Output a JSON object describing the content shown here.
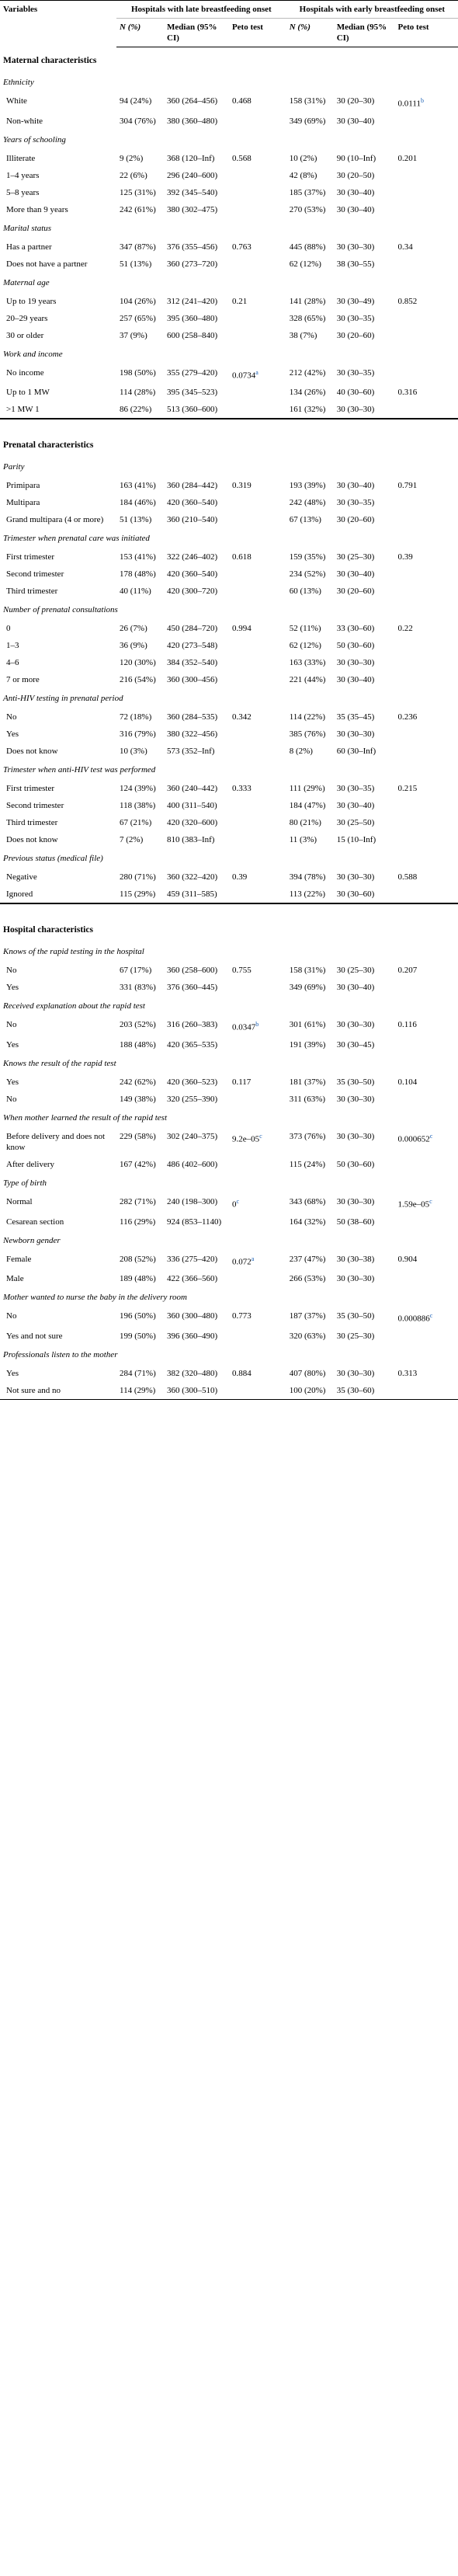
{
  "header": {
    "variables": "Variables",
    "group_late": "Hospitals with late breastfeeding onset",
    "group_early": "Hospitals with early breastfeeding onset",
    "col_n": "N (%)",
    "col_median": "Median (95% CI)",
    "col_peto": "Peto test"
  },
  "sections": [
    {
      "title": "Maternal characteristics",
      "groups": [
        {
          "title": "Ethnicity",
          "rows": [
            {
              "label": "White",
              "late_n": "94 (24%)",
              "late_median": "360 (264–456)",
              "late_peto": "0.468",
              "early_n": "158 (31%)",
              "early_median": "30 (20–30)",
              "early_peto": "0.0111",
              "early_note": "b"
            },
            {
              "label": "Non-white",
              "late_n": "304 (76%)",
              "late_median": "380 (360–480)",
              "late_peto": "",
              "early_n": "349 (69%)",
              "early_median": "30 (30–40)",
              "early_peto": ""
            }
          ]
        },
        {
          "title": "Years of schooling",
          "rows": [
            {
              "label": "Illiterate",
              "late_n": "9 (2%)",
              "late_median": "368 (120–Inf)",
              "late_peto": "0.568",
              "early_n": "10 (2%)",
              "early_median": "90 (10–Inf)",
              "early_peto": "0.201"
            },
            {
              "label": "1–4 years",
              "late_n": "22 (6%)",
              "late_median": "296 (240–600)",
              "late_peto": "",
              "early_n": "42 (8%)",
              "early_median": "30 (20–50)",
              "early_peto": ""
            },
            {
              "label": "5–8 years",
              "late_n": "125 (31%)",
              "late_median": "392 (345–540)",
              "late_peto": "",
              "early_n": "185 (37%)",
              "early_median": "30 (30–40)",
              "early_peto": ""
            },
            {
              "label": "More than 9 years",
              "late_n": "242 (61%)",
              "late_median": "380 (302–475)",
              "late_peto": "",
              "early_n": "270 (53%)",
              "early_median": "30 (30–40)",
              "early_peto": ""
            }
          ]
        },
        {
          "title": "Marital status",
          "rows": [
            {
              "label": "Has a partner",
              "late_n": "347 (87%)",
              "late_median": "376 (355–456)",
              "late_peto": "0.763",
              "early_n": "445 (88%)",
              "early_median": "30 (30–30)",
              "early_peto": "0.34"
            },
            {
              "label": "Does not have a partner",
              "late_n": "51 (13%)",
              "late_median": "360 (273–720)",
              "late_peto": "",
              "early_n": "62 (12%)",
              "early_median": "38 (30–55)",
              "early_peto": ""
            }
          ]
        },
        {
          "title": "Maternal age",
          "rows": [
            {
              "label": "Up to 19 years",
              "late_n": "104 (26%)",
              "late_median": "312 (241–420)",
              "late_peto": "0.21",
              "early_n": "141 (28%)",
              "early_median": "30 (30–49)",
              "early_peto": "0.852"
            },
            {
              "label": "20–29 years",
              "late_n": "257 (65%)",
              "late_median": "395 (360–480)",
              "late_peto": "",
              "early_n": "328 (65%)",
              "early_median": "30 (30–35)",
              "early_peto": ""
            },
            {
              "label": "30 or older",
              "late_n": "37 (9%)",
              "late_median": "600 (258–840)",
              "late_peto": "",
              "early_n": "38 (7%)",
              "early_median": "30 (20–60)",
              "early_peto": ""
            }
          ]
        },
        {
          "title": "Work and income",
          "rows": [
            {
              "label": "No income",
              "late_n": "198 (50%)",
              "late_median": "355 (279–420)",
              "late_peto": "0.0734",
              "late_note": "a",
              "early_n": "212 (42%)",
              "early_median": "30 (30–35)",
              "early_peto": ""
            },
            {
              "label": "Up to 1 MW",
              "late_n": "114 (28%)",
              "late_median": "395 (345–523)",
              "late_peto": "",
              "early_n": "134 (26%)",
              "early_median": "40 (30–60)",
              "early_peto": "0.316"
            },
            {
              "label": ">1 MW 1",
              "late_n": "86 (22%)",
              "late_median": "513 (360–600)",
              "late_peto": "",
              "early_n": "161 (32%)",
              "early_median": "30 (30–30)",
              "early_peto": ""
            }
          ]
        }
      ]
    },
    {
      "title": "Prenatal characteristics",
      "groups": [
        {
          "title": "Parity",
          "rows": [
            {
              "label": "Primipara",
              "late_n": "163 (41%)",
              "late_median": "360 (284–442)",
              "late_peto": "0.319",
              "early_n": "193 (39%)",
              "early_median": "30 (30–40)",
              "early_peto": "0.791"
            },
            {
              "label": "Multipara",
              "late_n": "184 (46%)",
              "late_median": "420 (360–540)",
              "late_peto": "",
              "early_n": "242 (48%)",
              "early_median": "30 (30–35)",
              "early_peto": ""
            },
            {
              "label": "Grand multipara (4 or more)",
              "late_n": "51 (13%)",
              "late_median": "360 (210–540)",
              "late_peto": "",
              "early_n": "67 (13%)",
              "early_median": "30 (20–60)",
              "early_peto": ""
            }
          ]
        },
        {
          "title": "Trimester when prenatal care was initiated",
          "rows": [
            {
              "label": "First trimester",
              "late_n": "153 (41%)",
              "late_median": "322 (246–402)",
              "late_peto": "0.618",
              "early_n": "159 (35%)",
              "early_median": "30 (25–30)",
              "early_peto": "0.39"
            },
            {
              "label": "Second trimester",
              "late_n": "178 (48%)",
              "late_median": "420 (360–540)",
              "late_peto": "",
              "early_n": "234 (52%)",
              "early_median": "30 (30–40)",
              "early_peto": ""
            },
            {
              "label": "Third trimester",
              "late_n": "40 (11%)",
              "late_median": "420 (300–720)",
              "late_peto": "",
              "early_n": "60 (13%)",
              "early_median": "30 (20–60)",
              "early_peto": ""
            }
          ]
        },
        {
          "title": "Number of prenatal consultations",
          "rows": [
            {
              "label": "0",
              "late_n": "26 (7%)",
              "late_median": "450 (284–720)",
              "late_peto": "0.994",
              "early_n": "52 (11%)",
              "early_median": "33 (30–60)",
              "early_peto": "0.22"
            },
            {
              "label": "1–3",
              "late_n": "36 (9%)",
              "late_median": "420 (273–548)",
              "late_peto": "",
              "early_n": "62 (12%)",
              "early_median": "50 (30–60)",
              "early_peto": ""
            },
            {
              "label": "4–6",
              "late_n": "120 (30%)",
              "late_median": "384 (352–540)",
              "late_peto": "",
              "early_n": "163 (33%)",
              "early_median": "30 (30–30)",
              "early_peto": ""
            },
            {
              "label": "7 or more",
              "late_n": "216 (54%)",
              "late_median": "360 (300–456)",
              "late_peto": "",
              "early_n": "221 (44%)",
              "early_median": "30 (30–40)",
              "early_peto": ""
            }
          ]
        },
        {
          "title": "Anti-HIV testing in prenatal period",
          "rows": [
            {
              "label": "No",
              "late_n": "72 (18%)",
              "late_median": "360 (284–535)",
              "late_peto": "0.342",
              "early_n": "114 (22%)",
              "early_median": "35 (35–45)",
              "early_peto": "0.236"
            },
            {
              "label": "Yes",
              "late_n": "316 (79%)",
              "late_median": "380 (322–456)",
              "late_peto": "",
              "early_n": "385 (76%)",
              "early_median": "30 (30–30)",
              "early_peto": ""
            },
            {
              "label": "Does not know",
              "late_n": "10 (3%)",
              "late_median": "573 (352–Inf)",
              "late_peto": "",
              "early_n": "8 (2%)",
              "early_median": "60 (30–Inf)",
              "early_peto": ""
            }
          ]
        },
        {
          "title": "Trimester when anti-HIV test was performed",
          "rows": [
            {
              "label": "First trimester",
              "late_n": "124 (39%)",
              "late_median": "360 (240–442)",
              "late_peto": "0.333",
              "early_n": "111 (29%)",
              "early_median": "30 (30–35)",
              "early_peto": "0.215"
            },
            {
              "label": "Second trimester",
              "late_n": "118 (38%)",
              "late_median": "400 (311–540)",
              "late_peto": "",
              "early_n": "184 (47%)",
              "early_median": "30 (30–40)",
              "early_peto": ""
            },
            {
              "label": "Third trimester",
              "late_n": "67 (21%)",
              "late_median": "420 (320–600)",
              "late_peto": "",
              "early_n": "80 (21%)",
              "early_median": "30 (25–50)",
              "early_peto": ""
            },
            {
              "label": "Does not know",
              "late_n": "7 (2%)",
              "late_median": "810 (383–Inf)",
              "late_peto": "",
              "early_n": "11 (3%)",
              "early_median": "15 (10–Inf)",
              "early_peto": ""
            }
          ]
        },
        {
          "title": "Previous status (medical file)",
          "rows": [
            {
              "label": "Negative",
              "late_n": "280 (71%)",
              "late_median": "360 (322–420)",
              "late_peto": "0.39",
              "early_n": "394 (78%)",
              "early_median": "30 (30–30)",
              "early_peto": "0.588"
            },
            {
              "label": "Ignored",
              "late_n": "115 (29%)",
              "late_median": "459 (311–585)",
              "late_peto": "",
              "early_n": "113 (22%)",
              "early_median": "30 (30–60)",
              "early_peto": ""
            }
          ]
        }
      ]
    },
    {
      "title": "Hospital characteristics",
      "groups": [
        {
          "title": "Knows of the rapid testing in the hospital",
          "rows": [
            {
              "label": "No",
              "late_n": "67 (17%)",
              "late_median": "360 (258–600)",
              "late_peto": "0.755",
              "early_n": "158 (31%)",
              "early_median": "30 (25–30)",
              "early_peto": "0.207"
            },
            {
              "label": "Yes",
              "late_n": "331 (83%)",
              "late_median": "376 (360–445)",
              "late_peto": "",
              "early_n": "349 (69%)",
              "early_median": "30 (30–40)",
              "early_peto": ""
            }
          ]
        },
        {
          "title": "Received explanation about the rapid test",
          "rows": [
            {
              "label": "No",
              "late_n": "203 (52%)",
              "late_median": "316 (260–383)",
              "late_peto": "0.0347",
              "late_note": "b",
              "early_n": "301 (61%)",
              "early_median": "30 (30–30)",
              "early_peto": "0.116"
            },
            {
              "label": "Yes",
              "late_n": "188 (48%)",
              "late_median": "420 (365–535)",
              "late_peto": "",
              "early_n": "191 (39%)",
              "early_median": "30 (30–45)",
              "early_peto": ""
            }
          ]
        },
        {
          "title": "Knows the result of the rapid test",
          "rows": [
            {
              "label": "Yes",
              "late_n": "242 (62%)",
              "late_median": "420 (360–523)",
              "late_peto": "0.117",
              "early_n": "181 (37%)",
              "early_median": "35 (30–50)",
              "early_peto": "0.104"
            },
            {
              "label": "No",
              "late_n": "149 (38%)",
              "late_median": "320 (255–390)",
              "late_peto": "",
              "early_n": "311 (63%)",
              "early_median": "30 (30–30)",
              "early_peto": ""
            }
          ]
        },
        {
          "title": "When mother learned the result of the rapid test",
          "rows": [
            {
              "label": "Before delivery and does not know",
              "late_n": "229 (58%)",
              "late_median": "302 (240–375)",
              "late_peto": "9.2e–05",
              "late_note": "c",
              "early_n": "373 (76%)",
              "early_median": "30 (30–30)",
              "early_peto": "0.000652",
              "early_note": "c"
            },
            {
              "label": "After delivery",
              "late_n": "167 (42%)",
              "late_median": "486 (402–600)",
              "late_peto": "",
              "early_n": "115 (24%)",
              "early_median": "50 (30–60)",
              "early_peto": ""
            }
          ]
        },
        {
          "title": "Type of birth",
          "rows": [
            {
              "label": "Normal",
              "late_n": "282 (71%)",
              "late_median": "240 (198–300)",
              "late_peto": "0",
              "late_note": "c",
              "early_n": "343 (68%)",
              "early_median": "30 (30–30)",
              "early_peto": "1.59e–05",
              "early_note": "c"
            },
            {
              "label": "Cesarean section",
              "late_n": "116 (29%)",
              "late_median": "924 (853–1140)",
              "late_peto": "",
              "early_n": "164 (32%)",
              "early_median": "50 (38–60)",
              "early_peto": ""
            }
          ]
        },
        {
          "title": "Newborn gender",
          "rows": [
            {
              "label": "Female",
              "late_n": "208 (52%)",
              "late_median": "336 (275–420)",
              "late_peto": "0.072",
              "late_note": "a",
              "early_n": "237 (47%)",
              "early_median": "30 (30–38)",
              "early_peto": "0.904"
            },
            {
              "label": "Male",
              "late_n": "189 (48%)",
              "late_median": "422 (366–560)",
              "late_peto": "",
              "early_n": "266 (53%)",
              "early_median": "30 (30–30)",
              "early_peto": ""
            }
          ]
        },
        {
          "title": "Mother wanted to nurse the baby in the delivery room",
          "rows": [
            {
              "label": "No",
              "late_n": "196 (50%)",
              "late_median": "360 (300–480)",
              "late_peto": "0.773",
              "early_n": "187 (37%)",
              "early_median": "35 (30–50)",
              "early_peto": "0.000886",
              "early_note": "c"
            },
            {
              "label": "Yes and not sure",
              "late_n": "199 (50%)",
              "late_median": "396 (360–490)",
              "late_peto": "",
              "early_n": "320 (63%)",
              "early_median": "30 (25–30)",
              "early_peto": ""
            }
          ]
        },
        {
          "title": "Professionals listen to the mother",
          "rows": [
            {
              "label": "Yes",
              "late_n": "284 (71%)",
              "late_median": "382 (320–480)",
              "late_peto": "0.884",
              "early_n": "407 (80%)",
              "early_median": "30 (30–30)",
              "early_peto": "0.313"
            },
            {
              "label": "Not sure and no",
              "late_n": "114 (29%)",
              "late_median": "360 (300–510)",
              "late_peto": "",
              "early_n": "100 (20%)",
              "early_median": "35 (30–60)",
              "early_peto": ""
            }
          ]
        }
      ]
    }
  ]
}
